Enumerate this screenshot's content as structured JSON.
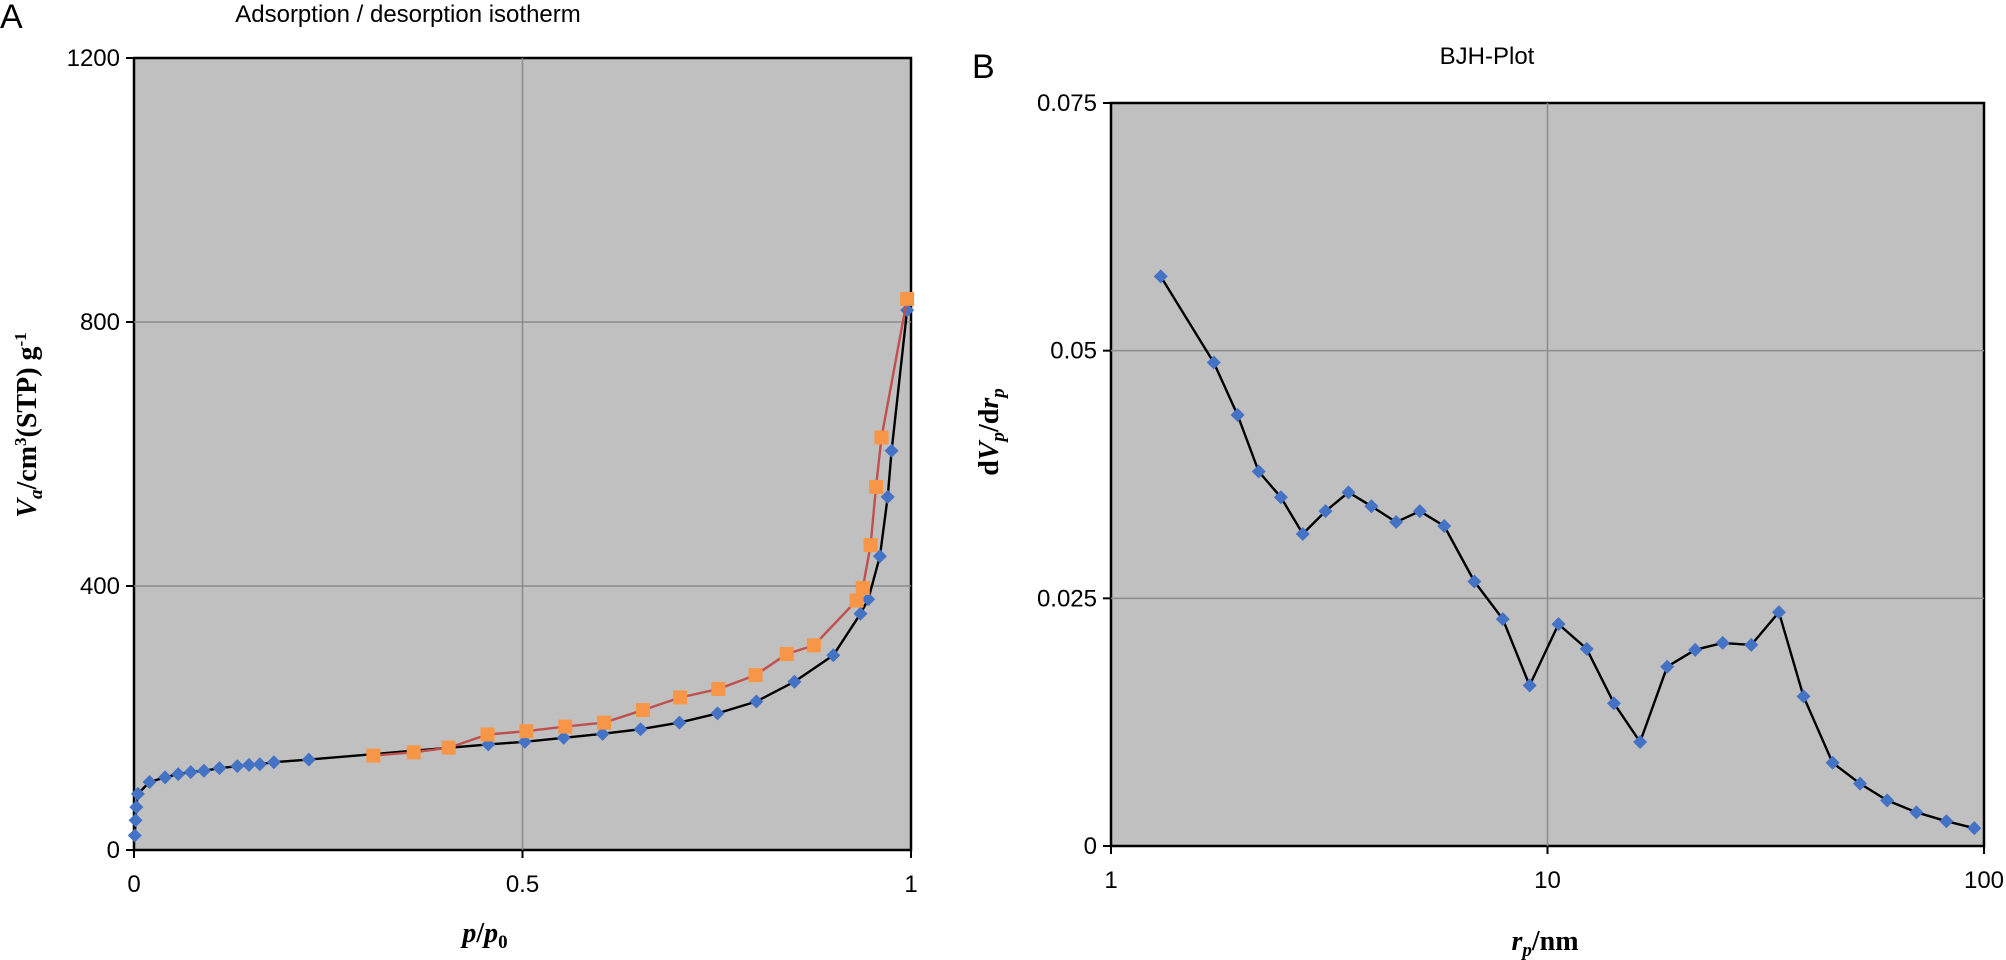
{
  "chart_data": [
    {
      "panel": "A",
      "type": "line",
      "title": "Adsorption / desorption isotherm",
      "xlabel": "p/p0",
      "xlabel_parts": {
        "a": "p",
        "b": "/",
        "c": "p",
        "sub": "0"
      },
      "ylabel": "Va/cm3(STP) g-1",
      "ylabel_parts": {
        "v": "V",
        "vsub": "a",
        "mid": "/cm",
        "sup1": "3",
        "rest": "(STP) g",
        "sup2": "-1"
      },
      "xlim": [
        0,
        1
      ],
      "ylim": [
        0,
        1200
      ],
      "xticks": [
        0,
        0.5,
        1
      ],
      "xtick_labels": [
        "0",
        "0.5",
        "1"
      ],
      "yticks": [
        0,
        400,
        800,
        1200
      ],
      "ytick_labels": [
        "0",
        "400",
        "800",
        "1200"
      ],
      "grid": true,
      "series": [
        {
          "color": "#000000",
          "marker": "diamond",
          "marker_color": "#4472c4",
          "x": [
            0.001,
            0.002,
            0.003,
            0.005,
            0.02,
            0.04,
            0.057,
            0.073,
            0.09,
            0.11,
            0.133,
            0.148,
            0.162,
            0.18,
            0.225,
            0.456,
            0.503,
            0.553,
            0.603,
            0.652,
            0.702,
            0.751,
            0.801,
            0.85,
            0.9,
            0.935,
            0.945,
            0.96,
            0.97,
            0.975,
            0.995
          ],
          "y": [
            22,
            45,
            65,
            85,
            103,
            110,
            115,
            118,
            120,
            124,
            127,
            129,
            130,
            133,
            137,
            160,
            164,
            170,
            176,
            183,
            193,
            207,
            225,
            255,
            295,
            358,
            380,
            445,
            535,
            605,
            818
          ]
        },
        {
          "color": "#c0504d",
          "marker": "square",
          "marker_color": "#f79646",
          "x": [
            0.308,
            0.36,
            0.405,
            0.455,
            0.505,
            0.555,
            0.605,
            0.655,
            0.703,
            0.752,
            0.8,
            0.84,
            0.875,
            0.93,
            0.938,
            0.948,
            0.955,
            0.962,
            0.995
          ],
          "y": [
            143,
            148,
            155,
            175,
            180,
            187,
            193,
            212,
            231,
            244,
            265,
            297,
            310,
            378,
            397,
            462,
            550,
            625,
            835
          ]
        }
      ]
    },
    {
      "panel": "B",
      "type": "line",
      "title": "BJH-Plot",
      "xlabel": "rp/nm",
      "xlabel_parts": {
        "r": "r",
        "sub": "p",
        "rest": "/nm"
      },
      "ylabel": "dVp/drp",
      "ylabel_parts": {
        "d1": "d",
        "v": "V",
        "vsub": "p",
        "mid": "/d",
        "r": "r",
        "rsub": "p"
      },
      "xscale": "log",
      "xlim": [
        1,
        100
      ],
      "ylim": [
        0,
        0.075
      ],
      "xticks": [
        1,
        10,
        100
      ],
      "xtick_labels": [
        "1",
        "10",
        "100"
      ],
      "yticks": [
        0,
        0.025,
        0.05,
        0.075
      ],
      "ytick_labels": [
        "0",
        "0.025",
        "0.05",
        "0.075"
      ],
      "grid": true,
      "series": [
        {
          "color": "#000000",
          "marker": "diamond",
          "marker_color": "#4472c4",
          "x": [
            1.3,
            1.72,
            1.95,
            2.18,
            2.45,
            2.75,
            3.1,
            3.5,
            3.95,
            4.5,
            5.1,
            5.8,
            6.8,
            7.9,
            9.1,
            10.6,
            12.3,
            14.2,
            16.3,
            18.8,
            21.8,
            25.2,
            29.3,
            33.9,
            38.6,
            45,
            52,
            60,
            70,
            82,
            95
          ],
          "y": [
            0.0575,
            0.0488,
            0.0435,
            0.0378,
            0.0352,
            0.0315,
            0.0338,
            0.0357,
            0.0343,
            0.0327,
            0.0338,
            0.0323,
            0.0267,
            0.0229,
            0.0162,
            0.0224,
            0.0199,
            0.0144,
            0.0105,
            0.0181,
            0.0198,
            0.0205,
            0.0203,
            0.0236,
            0.0151,
            0.0084,
            0.0063,
            0.0046,
            0.0034,
            0.0025,
            0.0018
          ]
        }
      ]
    }
  ],
  "panels": {
    "a_letter": "A",
    "b_letter": "B"
  }
}
